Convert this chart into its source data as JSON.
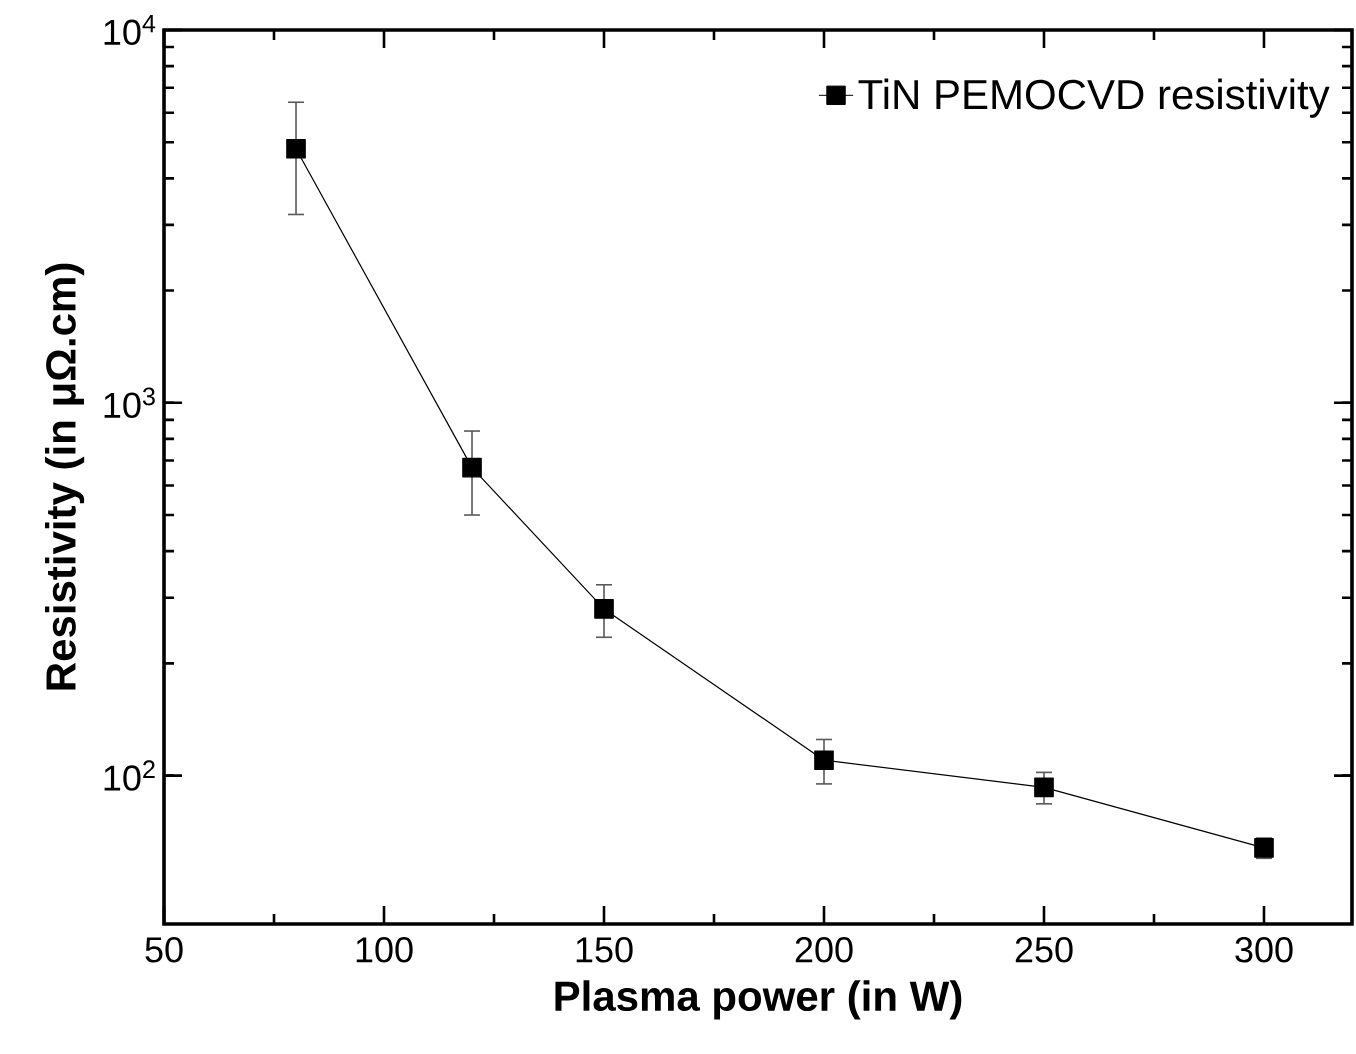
{
  "chart_data": {
    "type": "line",
    "xlabel": "Plasma power (in W)",
    "ylabel": "Resistivity (in μΩ.cm)",
    "x": [
      80,
      120,
      150,
      200,
      250,
      300
    ],
    "series": [
      {
        "name": "TiN PEMOCVD resistivity",
        "color": "#000000",
        "values": [
          4800,
          670,
          280,
          110,
          93,
          64
        ],
        "errors": [
          1600,
          170,
          45,
          15,
          9,
          4
        ]
      }
    ],
    "xlim": [
      50,
      320
    ],
    "ylim": [
      40,
      10000
    ],
    "xticks": [
      50,
      100,
      150,
      200,
      250,
      300
    ],
    "yticks": [
      {
        "value": 100,
        "label": "10$^{2}$"
      },
      {
        "value": 1000,
        "label": "10$^{3}$"
      },
      {
        "value": 10000,
        "label": "10$^{4}$"
      }
    ],
    "log": "y",
    "marker": "square",
    "line_style": "solid",
    "legend": "top right"
  }
}
